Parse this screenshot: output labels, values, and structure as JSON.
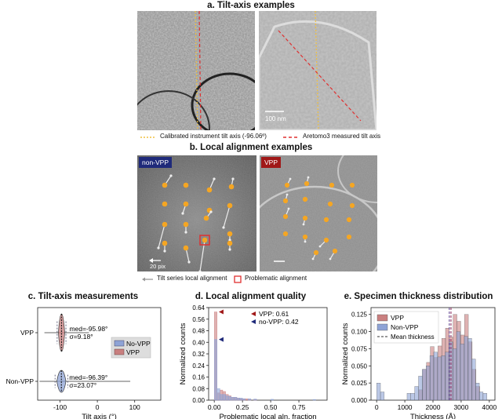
{
  "panel_a": {
    "title": "a. Tilt-axis examples",
    "scale_bar": "100 nm",
    "legend_calibrated": "Calibrated instrument tilt axis (-96.06º)",
    "legend_aretomo": "Aretomo3 measured tilt axis"
  },
  "panel_b": {
    "title": "b. Local alignment examples",
    "badge_left": "non-VPP",
    "badge_right": "VPP",
    "scale_bar": "20 pix",
    "legend_arrow": "Tilt series local alignment",
    "legend_problem": "Problematic alignment"
  },
  "colors": {
    "vpp": "#c97f7f",
    "novpp": "#8ea3d6",
    "dot": "#f5a623",
    "badge_blue": "#1f2a7a",
    "badge_red": "#a01818",
    "calibrated": "#f0c040",
    "aretomo": "#e03030"
  },
  "chart_data": [
    {
      "type": "violin",
      "title": "c. Tilt-axis measurements",
      "xlabel": "Tilt axis (°)",
      "ylabel": "",
      "xlim": [
        -160,
        170
      ],
      "xticks": [
        "-100",
        "0",
        "100"
      ],
      "categories": [
        "VPP",
        "Non-VPP"
      ],
      "legend": [
        "No-VPP",
        "VPP"
      ],
      "legend_placement": "right",
      "series": [
        {
          "name": "VPP",
          "median": -95.98,
          "sigma": 9.18,
          "annotation": [
            "med=-95.98°",
            "σ=9.18°"
          ]
        },
        {
          "name": "Non-VPP",
          "median": -96.39,
          "sigma": 23.07,
          "annotation": [
            "med=-96.39°",
            "σ=23.07°"
          ]
        }
      ]
    },
    {
      "type": "bar",
      "title": "d. Local alignment quality",
      "xlabel": "Problematic local aln. fraction",
      "ylabel": "Normalized counts",
      "xlim": [
        -0.05,
        1.0
      ],
      "ylim": [
        0,
        0.64
      ],
      "xticks": [
        "0.00",
        "0.25",
        "0.50",
        "0.75"
      ],
      "yticks": [
        "0.00",
        "0.08",
        "0.16",
        "0.24",
        "0.32",
        "0.40",
        "0.48",
        "0.56",
        "0.64"
      ],
      "legend": [
        "VPP: 0.61",
        "no-VPP: 0.42"
      ],
      "legend_placement": "top-right",
      "bin_width": 0.025,
      "series": [
        {
          "name": "VPP",
          "bins": [
            0.0,
            0.025,
            0.05,
            0.075,
            0.1,
            0.125,
            0.15,
            0.175,
            0.2,
            0.225,
            0.25,
            0.275,
            0.3,
            0.35
          ],
          "values": [
            0.61,
            0.05,
            0.07,
            0.06,
            0.04,
            0.03,
            0.02,
            0.02,
            0.015,
            0.01,
            0.01,
            0.01,
            0.005,
            0.005
          ]
        },
        {
          "name": "no-VPP",
          "bins": [
            0.0,
            0.025,
            0.05,
            0.075,
            0.1,
            0.125,
            0.15,
            0.175,
            0.2,
            0.225,
            0.25,
            0.3,
            0.35,
            0.5,
            0.875
          ],
          "values": [
            0.42,
            0.08,
            0.04,
            0.04,
            0.03,
            0.025,
            0.02,
            0.02,
            0.015,
            0.015,
            0.01,
            0.01,
            0.008,
            0.006,
            0.005
          ]
        }
      ]
    },
    {
      "type": "bar",
      "title": "e. Specimen thickness distribution",
      "xlabel": "Thickness (Å)",
      "ylabel": "Normalized counts",
      "xlim": [
        -200,
        4200
      ],
      "ylim": [
        0,
        0.135
      ],
      "xticks": [
        "0",
        "1000",
        "2000",
        "3000",
        "4000"
      ],
      "yticks": [
        "0.000",
        "0.025",
        "0.050",
        "0.075",
        "0.100",
        "0.125"
      ],
      "legend": [
        "VPP",
        "Non-VPP",
        "Mean thickness"
      ],
      "legend_placement": "top-left",
      "bin_width": 135,
      "series": [
        {
          "name": "VPP",
          "mean": 2640,
          "bins": [
            1500,
            1635,
            1770,
            1905,
            2040,
            2175,
            2310,
            2445,
            2580,
            2715,
            2850,
            2985,
            3120,
            3255,
            3390,
            3525
          ],
          "values": [
            0.015,
            0.045,
            0.055,
            0.078,
            0.062,
            0.079,
            0.09,
            0.105,
            0.092,
            0.125,
            0.115,
            0.095,
            0.125,
            0.085,
            0.045,
            0.02
          ]
        },
        {
          "name": "Non-VPP",
          "mean": 2580,
          "bins": [
            0,
            135,
            1080,
            1215,
            1350,
            1485,
            1620,
            1755,
            1890,
            2025,
            2160,
            2295,
            2430,
            2565,
            2700,
            2835,
            2970,
            3105,
            3240,
            3375,
            3510,
            3645,
            3780
          ],
          "values": [
            0.025,
            0.012,
            0.01,
            0.01,
            0.02,
            0.035,
            0.045,
            0.05,
            0.065,
            0.07,
            0.063,
            0.065,
            0.07,
            0.085,
            0.075,
            0.1,
            0.082,
            0.093,
            0.09,
            0.06,
            0.025,
            0.012,
            0.01
          ]
        }
      ]
    }
  ]
}
